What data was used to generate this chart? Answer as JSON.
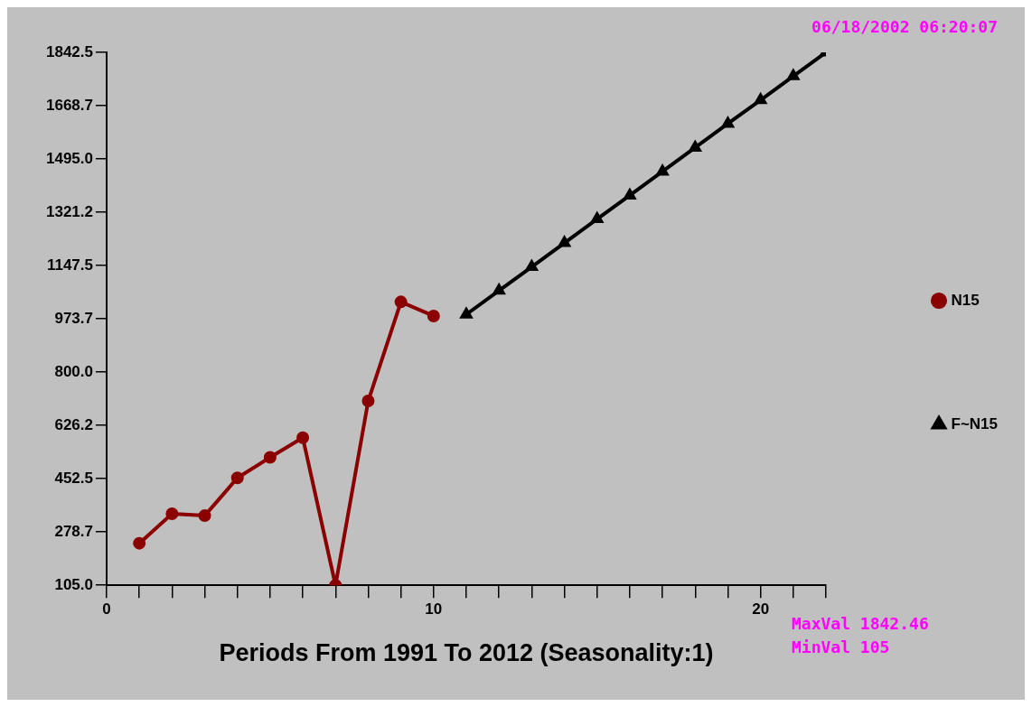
{
  "chart_data": {
    "type": "line",
    "xlabel": "Periods From 1991 To 2012 (Seasonality:1)",
    "annotations": [
      "06/18/2002 06:20:07",
      "MaxVal 1842.46",
      "MinVal 105"
    ],
    "series": [
      {
        "name": "N15",
        "color": "#8b0000",
        "marker": "circle",
        "x": [
          1,
          2,
          3,
          4,
          5,
          6,
          7,
          8,
          9,
          10
        ],
        "values": [
          242,
          338,
          332,
          455,
          522,
          586,
          105,
          706,
          1029,
          983
        ]
      },
      {
        "name": "F~N15",
        "color": "#000000",
        "marker": "triangle",
        "x": [
          11,
          12,
          13,
          14,
          15,
          16,
          17,
          18,
          19,
          20,
          21,
          22
        ],
        "values": [
          988,
          1066,
          1143,
          1221,
          1299,
          1376,
          1454,
          1532,
          1610,
          1687,
          1765,
          1842.46
        ]
      }
    ],
    "xlim": [
      0,
      22
    ],
    "xticks": [
      0,
      {
        "value": 1,
        "label": null
      },
      {
        "value": 2,
        "label": null
      },
      {
        "value": 3,
        "label": null
      },
      {
        "value": 4,
        "label": null
      },
      {
        "value": 5,
        "label": null
      },
      {
        "value": 6,
        "label": null
      },
      {
        "value": 7,
        "label": null
      },
      {
        "value": 8,
        "label": null
      },
      {
        "value": 9,
        "label": null
      },
      10,
      {
        "value": 11,
        "label": null
      },
      {
        "value": 12,
        "label": null
      },
      {
        "value": 13,
        "label": null
      },
      {
        "value": 14,
        "label": null
      },
      {
        "value": 15,
        "label": null
      },
      {
        "value": 16,
        "label": null
      },
      {
        "value": 17,
        "label": null
      },
      {
        "value": 18,
        "label": null
      },
      {
        "value": 19,
        "label": null
      },
      20,
      {
        "value": 21,
        "label": null
      },
      {
        "value": 22,
        "label": null
      }
    ],
    "ylim": [
      105,
      1842.5
    ],
    "yticks": [
      {
        "value": 105,
        "label": "105.0"
      },
      278.7,
      452.5,
      626.2,
      {
        "value": 800,
        "label": "800.0"
      },
      973.7,
      1147.5,
      1321.2,
      {
        "value": 1495,
        "label": "1495.0"
      },
      1668.7,
      1842.5
    ],
    "grid": false,
    "legend": "right",
    "line_style": "solid"
  }
}
